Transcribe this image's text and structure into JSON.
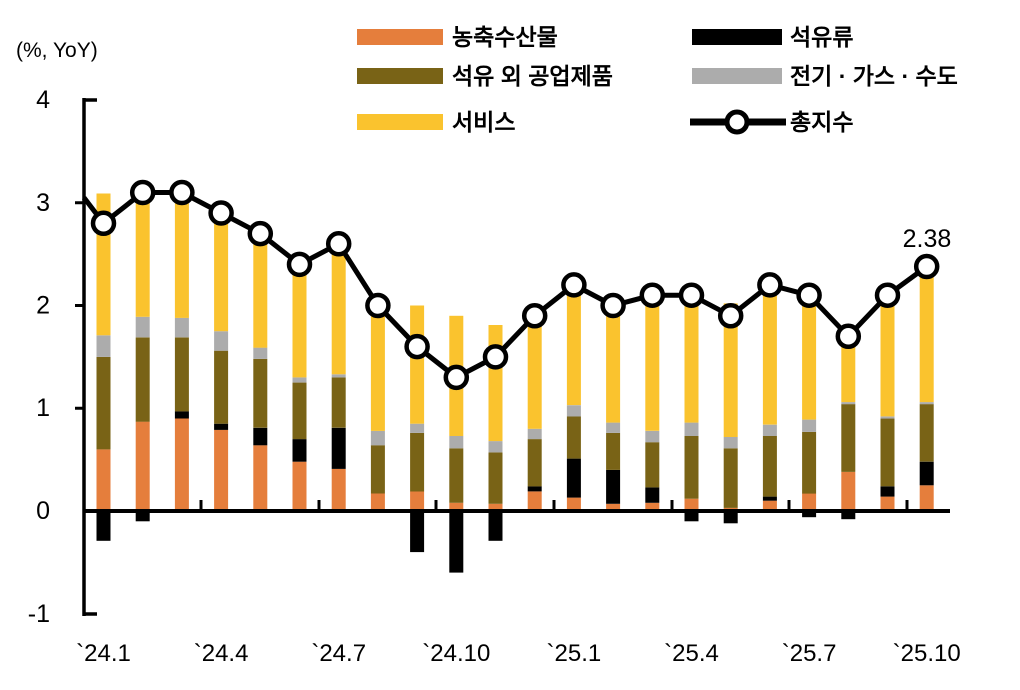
{
  "header": {
    "unit_label": "(%, YoY)"
  },
  "legend": {
    "items": [
      {
        "label": "농축수산물",
        "color": "#E57E3C",
        "marker": "swatch"
      },
      {
        "label": "석유 외 공업제품",
        "color": "#796316",
        "marker": "swatch"
      },
      {
        "label": "서비스",
        "color": "#FAC32E",
        "marker": "swatch"
      },
      {
        "label": "석유류",
        "color": "#000000",
        "marker": "swatch"
      },
      {
        "label": "전기 · 가스 · 수도",
        "color": "#ACACAC",
        "marker": "swatch"
      },
      {
        "label": "총지수",
        "color": "#000000",
        "marker": "line-circle",
        "marker_fill": "#FFFFFF"
      }
    ]
  },
  "chart_data": {
    "type": "bar",
    "subtype": "stacked-bar-with-line",
    "title": "",
    "xlabel": "",
    "ylabel": "(%, YoY)",
    "ylim": [
      -1,
      4
    ],
    "yticks": [
      4,
      3,
      2,
      1,
      0,
      -1
    ],
    "ytick_labels": [
      "4",
      "3",
      "2",
      "1",
      "0",
      "-1"
    ],
    "grid": false,
    "legend_position": "top",
    "categories": [
      "24.1",
      "24.2",
      "24.3",
      "24.4",
      "24.5",
      "24.6",
      "24.7",
      "24.8",
      "24.9",
      "24.10",
      "24.11",
      "24.12",
      "25.1",
      "25.2",
      "25.3",
      "25.4",
      "25.5",
      "25.6",
      "25.7",
      "25.8",
      "25.9",
      "25.10"
    ],
    "x_tick_labels": [
      "`24.1",
      "`24.4",
      "`24.7",
      "`24.10",
      "`25.1",
      "`25.4",
      "`25.7",
      "`25.10"
    ],
    "x_tick_label_indices": [
      0,
      3,
      6,
      9,
      12,
      15,
      18,
      21
    ],
    "series": [
      {
        "name": "농축수산물",
        "color": "#E57E3C",
        "values": [
          0.6,
          0.87,
          0.9,
          0.79,
          0.64,
          0.48,
          0.41,
          0.17,
          0.19,
          0.08,
          0.07,
          0.19,
          0.13,
          0.07,
          0.08,
          0.12,
          0.03,
          0.1,
          0.17,
          0.38,
          0.14,
          0.25
        ]
      },
      {
        "name": "석유류",
        "color": "#000000",
        "values": [
          -0.29,
          -0.1,
          0.07,
          0.06,
          0.17,
          0.22,
          0.4,
          0.0,
          -0.4,
          -0.6,
          -0.29,
          0.05,
          0.38,
          0.33,
          0.15,
          -0.1,
          -0.12,
          0.04,
          -0.06,
          -0.08,
          0.1,
          0.23
        ]
      },
      {
        "name": "석유 외 공업제품",
        "color": "#796316",
        "values": [
          0.9,
          0.82,
          0.72,
          0.71,
          0.67,
          0.55,
          0.49,
          0.47,
          0.57,
          0.53,
          0.5,
          0.46,
          0.41,
          0.36,
          0.44,
          0.61,
          0.58,
          0.59,
          0.6,
          0.66,
          0.66,
          0.56
        ]
      },
      {
        "name": "전기 · 가스 · 수도",
        "color": "#ACACAC",
        "values": [
          0.21,
          0.2,
          0.19,
          0.19,
          0.11,
          0.05,
          0.03,
          0.14,
          0.09,
          0.12,
          0.11,
          0.1,
          0.11,
          0.1,
          0.11,
          0.13,
          0.11,
          0.11,
          0.12,
          0.02,
          0.02,
          0.02
        ]
      },
      {
        "name": "서비스",
        "color": "#FAC32E",
        "values": [
          1.38,
          1.31,
          1.22,
          1.15,
          1.11,
          1.1,
          1.27,
          1.22,
          1.15,
          1.17,
          1.13,
          1.1,
          1.17,
          1.14,
          1.32,
          1.34,
          1.3,
          1.36,
          1.27,
          0.72,
          1.18,
          1.32
        ]
      }
    ],
    "line_series": {
      "name": "총지수",
      "color": "#000000",
      "marker_fill": "#FFFFFF",
      "values": [
        2.8,
        3.1,
        3.1,
        2.9,
        2.7,
        2.4,
        2.6,
        2.0,
        1.6,
        1.3,
        1.5,
        1.9,
        2.2,
        2.0,
        2.1,
        2.1,
        1.9,
        2.2,
        2.1,
        1.7,
        2.1,
        2.38
      ]
    },
    "line_left_clip_value": 3.05,
    "annotation": "2.38",
    "annotation_point_index": 21,
    "axis_color": "#000000"
  }
}
